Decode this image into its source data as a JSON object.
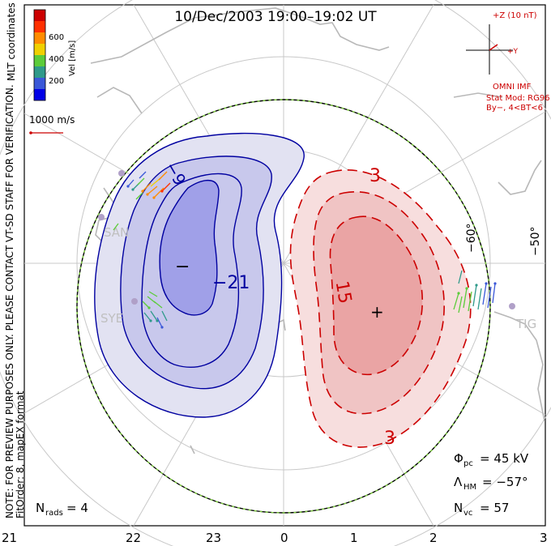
{
  "title": "10/Dec/2003  19:00–19:02  UT",
  "colorbar": {
    "ticks": [
      "600",
      "400",
      "200"
    ],
    "label": "Vel [m/s]",
    "colors": [
      "#0000e6",
      "#3a58d8",
      "#2f9a8a",
      "#5ccc3a",
      "#f0d000",
      "#ff8c00",
      "#ff3000",
      "#cc0000"
    ]
  },
  "mlt_coordinates_label": "MLT coordinates",
  "reference_vector": {
    "label": "1000 m/s",
    "color": "#cc0000"
  },
  "side_note": {
    "line1": "NOTE: FOR PREVIEW PURPOSES ONLY. PLEASE CONTACT VT-SD STAFF FOR VERIFICATION.",
    "line2": "FitOrder: 8,  mapEX format"
  },
  "imf": {
    "scale_label": "+Z (10 nT)",
    "y_label": "+Y",
    "source_label": "OMNI IMF",
    "model_line1": "Stat Mod: RG96",
    "model_line2": "By−, 4<BT<6",
    "color": "#cc0000"
  },
  "latitude_labels": [
    "−60°",
    "−50°"
  ],
  "contours": {
    "negative_labels": [
      "−9",
      "−21"
    ],
    "positive_labels": [
      "3",
      "15",
      "3"
    ],
    "negative_color": "#0000a0",
    "positive_color": "#cc0000",
    "min_marker": "−",
    "max_marker": "+"
  },
  "radar_stations": [
    "SAN",
    "SYE",
    "TIG"
  ],
  "stats": {
    "phi_pc_symbol": "Φ",
    "phi_pc_sub": "pc",
    "phi_pc_value": "=  45 kV",
    "lambda_hm_symbol": "Λ",
    "lambda_hm_sub": "HM",
    "lambda_hm_value": "=  −57°",
    "n_vc_symbol": "N",
    "n_vc_sub": "vc",
    "n_vc_value": "=  57",
    "n_rads_symbol": "N",
    "n_rads_sub": "rads",
    "n_rads_value": "=  4"
  },
  "mlt_axis": [
    "21",
    "22",
    "23",
    "0",
    "1",
    "2",
    "3"
  ],
  "colors": {
    "hmb_outer": "#000000",
    "hmb_dash": "#80d040",
    "land": "#b8b8b8",
    "grid": "#c8c8c8",
    "neg_fill_outer": "#e2e2f2",
    "neg_fill_mid": "#c8c8ec",
    "neg_fill_inner": "#a0a0e8",
    "pos_fill_outer": "#f7dede",
    "pos_fill_mid": "#f0c4c4",
    "pos_fill_inner": "#eaa4a4"
  }
}
